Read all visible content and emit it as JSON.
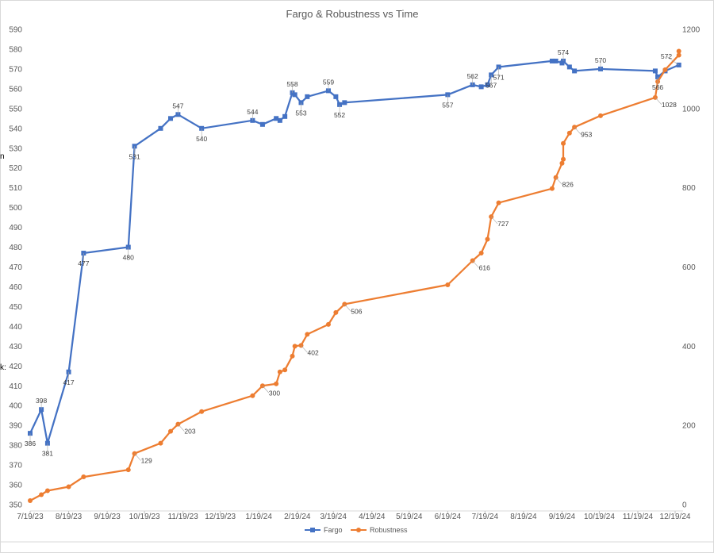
{
  "chart_data": {
    "type": "line",
    "title": "Fargo & Robustness vs Time",
    "xlabel": "",
    "ylabel_left": "",
    "ylabel_right": "",
    "x_ticks": [
      "7/19/23",
      "8/19/23",
      "9/19/23",
      "10/19/23",
      "11/19/23",
      "12/19/23",
      "1/19/24",
      "2/19/24",
      "3/19/24",
      "4/19/24",
      "5/19/24",
      "6/19/24",
      "7/19/24",
      "8/19/24",
      "9/19/24",
      "10/19/24",
      "11/19/24",
      "12/19/24"
    ],
    "xlim": [
      "2023-07-19",
      "2024-12-19"
    ],
    "ylim_left": [
      350,
      590
    ],
    "ylim_right": [
      0,
      1200
    ],
    "y_ticks_left": [
      350,
      360,
      370,
      380,
      390,
      400,
      410,
      420,
      430,
      440,
      450,
      460,
      470,
      480,
      490,
      500,
      510,
      520,
      530,
      540,
      550,
      560,
      570,
      580,
      590
    ],
    "y_ticks_right": [
      0,
      200,
      400,
      600,
      800,
      1000,
      1200
    ],
    "grid": false,
    "legend": "bottom",
    "series": [
      {
        "name": "Fargo",
        "axis": "left",
        "color": "#4472C4",
        "marker": "square",
        "points": [
          {
            "x": "2023-07-19",
            "y": 386,
            "label": "386"
          },
          {
            "x": "2023-07-28",
            "y": 398,
            "label": "398"
          },
          {
            "x": "2023-08-02",
            "y": 381,
            "label": "381"
          },
          {
            "x": "2023-08-19",
            "y": 417,
            "label": "417"
          },
          {
            "x": "2023-08-31",
            "y": 477,
            "label": "477"
          },
          {
            "x": "2023-10-06",
            "y": 480,
            "label": "480"
          },
          {
            "x": "2023-10-11",
            "y": 531,
            "label": "531"
          },
          {
            "x": "2023-11-01",
            "y": 540
          },
          {
            "x": "2023-11-09",
            "y": 545
          },
          {
            "x": "2023-11-15",
            "y": 547,
            "label": "547"
          },
          {
            "x": "2023-12-04",
            "y": 540,
            "label": "540"
          },
          {
            "x": "2024-01-14",
            "y": 544,
            "label": "544"
          },
          {
            "x": "2024-01-22",
            "y": 542
          },
          {
            "x": "2024-02-02",
            "y": 545
          },
          {
            "x": "2024-02-05",
            "y": 544
          },
          {
            "x": "2024-02-09",
            "y": 546
          },
          {
            "x": "2024-02-15",
            "y": 558,
            "label": "558"
          },
          {
            "x": "2024-02-17",
            "y": 557
          },
          {
            "x": "2024-02-22",
            "y": 553,
            "label": "553"
          },
          {
            "x": "2024-02-27",
            "y": 556
          },
          {
            "x": "2024-03-15",
            "y": 559,
            "label": "559"
          },
          {
            "x": "2024-03-21",
            "y": 556
          },
          {
            "x": "2024-03-24",
            "y": 552,
            "label": "552"
          },
          {
            "x": "2024-03-28",
            "y": 553
          },
          {
            "x": "2024-06-19",
            "y": 557,
            "label": "557"
          },
          {
            "x": "2024-07-09",
            "y": 562,
            "label": "562"
          },
          {
            "x": "2024-07-16",
            "y": 561
          },
          {
            "x": "2024-07-21",
            "y": 562
          },
          {
            "x": "2024-07-24",
            "y": 567,
            "label": "567"
          },
          {
            "x": "2024-07-30",
            "y": 571,
            "label": "571"
          },
          {
            "x": "2024-09-11",
            "y": 574
          },
          {
            "x": "2024-09-14",
            "y": 574
          },
          {
            "x": "2024-09-19",
            "y": 573
          },
          {
            "x": "2024-09-20",
            "y": 574,
            "label": "574"
          },
          {
            "x": "2024-09-25",
            "y": 571
          },
          {
            "x": "2024-09-29",
            "y": 569
          },
          {
            "x": "2024-10-20",
            "y": 570,
            "label": "570"
          },
          {
            "x": "2024-12-03",
            "y": 569
          },
          {
            "x": "2024-12-05",
            "y": 566,
            "label": "566"
          },
          {
            "x": "2024-12-11",
            "y": 569
          },
          {
            "x": "2024-12-22",
            "y": 572,
            "label": "572"
          }
        ]
      },
      {
        "name": "Robustness",
        "axis": "right",
        "color": "#ED7D31",
        "marker": "circle",
        "points": [
          {
            "x": "2023-07-19",
            "y": 10
          },
          {
            "x": "2023-07-28",
            "y": 25
          },
          {
            "x": "2023-08-02",
            "y": 35
          },
          {
            "x": "2023-08-19",
            "y": 45
          },
          {
            "x": "2023-08-31",
            "y": 70
          },
          {
            "x": "2023-10-06",
            "y": 88
          },
          {
            "x": "2023-10-11",
            "y": 129,
            "label": "129"
          },
          {
            "x": "2023-11-01",
            "y": 155
          },
          {
            "x": "2023-11-09",
            "y": 185
          },
          {
            "x": "2023-11-15",
            "y": 203,
            "label": "203"
          },
          {
            "x": "2023-12-04",
            "y": 235
          },
          {
            "x": "2024-01-14",
            "y": 275
          },
          {
            "x": "2024-01-22",
            "y": 300,
            "label": "300"
          },
          {
            "x": "2024-02-02",
            "y": 305
          },
          {
            "x": "2024-02-05",
            "y": 335
          },
          {
            "x": "2024-02-09",
            "y": 340
          },
          {
            "x": "2024-02-15",
            "y": 375
          },
          {
            "x": "2024-02-17",
            "y": 400
          },
          {
            "x": "2024-02-22",
            "y": 402,
            "label": "402"
          },
          {
            "x": "2024-02-27",
            "y": 430
          },
          {
            "x": "2024-03-15",
            "y": 455
          },
          {
            "x": "2024-03-21",
            "y": 485
          },
          {
            "x": "2024-03-28",
            "y": 506,
            "label": "506"
          },
          {
            "x": "2024-06-19",
            "y": 555
          },
          {
            "x": "2024-07-09",
            "y": 616,
            "label": "616"
          },
          {
            "x": "2024-07-16",
            "y": 635
          },
          {
            "x": "2024-07-21",
            "y": 670
          },
          {
            "x": "2024-07-24",
            "y": 727,
            "label": "727"
          },
          {
            "x": "2024-07-30",
            "y": 762
          },
          {
            "x": "2024-09-11",
            "y": 798
          },
          {
            "x": "2024-09-14",
            "y": 826,
            "label": "826"
          },
          {
            "x": "2024-09-19",
            "y": 862
          },
          {
            "x": "2024-09-20",
            "y": 872
          },
          {
            "x": "2024-09-20",
            "y": 912
          },
          {
            "x": "2024-09-25",
            "y": 938
          },
          {
            "x": "2024-09-29",
            "y": 953,
            "label": "953"
          },
          {
            "x": "2024-10-20",
            "y": 982
          },
          {
            "x": "2024-12-03",
            "y": 1028,
            "label": "1028"
          },
          {
            "x": "2024-12-05",
            "y": 1068
          },
          {
            "x": "2024-12-11",
            "y": 1098
          },
          {
            "x": "2024-12-22",
            "y": 1135
          },
          {
            "x": "2024-12-22",
            "y": 1145
          }
        ]
      }
    ]
  },
  "legend_labels": [
    "Fargo",
    "Robustness"
  ],
  "edge_fragments": [
    "n",
    "k:"
  ]
}
